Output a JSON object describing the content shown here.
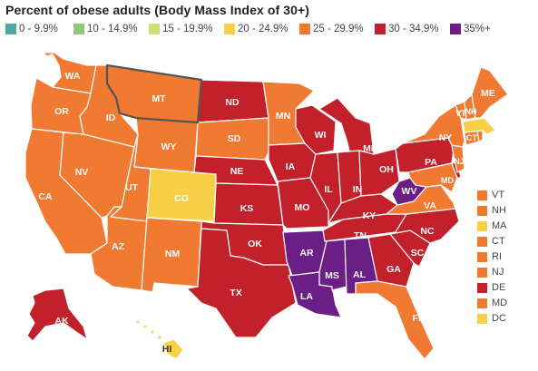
{
  "title": "Percent of obese adults (Body Mass Index of 30+)",
  "legend": [
    {
      "label": "0 - 9.9%",
      "color": "#4fa6a6"
    },
    {
      "label": "10 - 14.9%",
      "color": "#8fc77f"
    },
    {
      "label": "15 - 19.9%",
      "color": "#cfe077"
    },
    {
      "label": "20 - 24.9%",
      "color": "#f8d045"
    },
    {
      "label": "25 - 29.9%",
      "color": "#f07a32"
    },
    {
      "label": "30 - 34.9%",
      "color": "#c2202a"
    },
    {
      "label": "35%+",
      "color": "#6b1f86"
    }
  ],
  "state_labels": {
    "WA": "WA",
    "OR": "OR",
    "CA": "CA",
    "ID": "ID",
    "NV": "NV",
    "MT": "MT",
    "WY": "WY",
    "UT": "UT",
    "AZ": "AZ",
    "CO": "CO",
    "NM": "NM",
    "ND": "ND",
    "SD": "SD",
    "NE": "NE",
    "KS": "KS",
    "OK": "OK",
    "TX": "TX",
    "MN": "MN",
    "IA": "IA",
    "MO": "MO",
    "AR": "AR",
    "LA": "LA",
    "WI": "WI",
    "IL": "IL",
    "MI": "MI",
    "IN": "IN",
    "OH": "OH",
    "KY": "KY",
    "TN": "TN",
    "MS": "MS",
    "AL": "AL",
    "GA": "GA",
    "FL": "FL",
    "SC": "SC",
    "NC": "NC",
    "VA": "VA",
    "WV": "WV",
    "PA": "PA",
    "NY": "NY",
    "ME": "ME",
    "AK": "AK",
    "HI": "HI"
  },
  "state_bins": {
    "WA": "25 - 29.9%",
    "OR": "25 - 29.9%",
    "CA": "25 - 29.9%",
    "ID": "25 - 29.9%",
    "NV": "25 - 29.9%",
    "MT": "25 - 29.9%",
    "WY": "25 - 29.9%",
    "UT": "25 - 29.9%",
    "AZ": "25 - 29.9%",
    "CO": "20 - 24.9%",
    "NM": "25 - 29.9%",
    "ND": "30 - 34.9%",
    "SD": "25 - 29.9%",
    "NE": "30 - 34.9%",
    "KS": "30 - 34.9%",
    "OK": "30 - 34.9%",
    "TX": "30 - 34.9%",
    "MN": "25 - 29.9%",
    "IA": "30 - 34.9%",
    "MO": "30 - 34.9%",
    "AR": "35%+",
    "LA": "35%+",
    "WI": "30 - 34.9%",
    "IL": "30 - 34.9%",
    "MI": "30 - 34.9%",
    "IN": "30 - 34.9%",
    "OH": "30 - 34.9%",
    "KY": "30 - 34.9%",
    "TN": "30 - 34.9%",
    "MS": "35%+",
    "AL": "35%+",
    "GA": "30 - 34.9%",
    "FL": "25 - 29.9%",
    "SC": "30 - 34.9%",
    "NC": "30 - 34.9%",
    "VA": "25 - 29.9%",
    "WV": "35%+",
    "PA": "30 - 34.9%",
    "NY": "25 - 29.9%",
    "ME": "25 - 29.9%",
    "AK": "30 - 34.9%",
    "HI": "20 - 24.9%"
  },
  "small_states": [
    {
      "label": "VT",
      "bin": "25 - 29.9%",
      "color": "#f07a32"
    },
    {
      "label": "NH",
      "bin": "25 - 29.9%",
      "color": "#f07a32"
    },
    {
      "label": "MA",
      "bin": "20 - 24.9%",
      "color": "#f8d045"
    },
    {
      "label": "CT",
      "bin": "25 - 29.9%",
      "color": "#f07a32"
    },
    {
      "label": "RI",
      "bin": "25 - 29.9%",
      "color": "#f07a32"
    },
    {
      "label": "NJ",
      "bin": "25 - 29.9%",
      "color": "#f07a32"
    },
    {
      "label": "DE",
      "bin": "30 - 34.9%",
      "color": "#c2202a"
    },
    {
      "label": "MD",
      "bin": "25 - 29.9%",
      "color": "#f07a32"
    },
    {
      "label": "DC",
      "bin": "20 - 24.9%",
      "color": "#f8d045"
    }
  ],
  "map_inline_labels": {
    "VT": "VT",
    "NH": "NH",
    "CT": "CT",
    "NJ": "NJ",
    "MD": "MD"
  }
}
